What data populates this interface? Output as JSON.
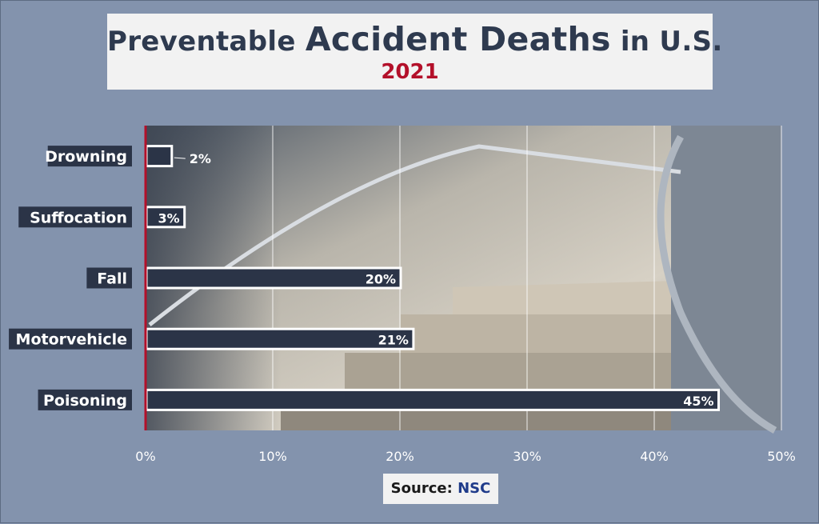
{
  "header": {
    "title_part1": "Preventable",
    "title_part2": "Accident Deaths",
    "title_part3": "in U.S.",
    "subtitle": "2021"
  },
  "source": {
    "label": "Source:",
    "value": "NSC"
  },
  "colors": {
    "background": "#8393ad",
    "bar_fill": "#2b3447",
    "bar_outline": "#ffffff",
    "axis_line": "#b3102a",
    "title_text": "#2e3a4f",
    "subtitle_text": "#b3102a"
  },
  "chart_data": {
    "type": "bar",
    "orientation": "horizontal",
    "categories": [
      "Drowning",
      "Suffocation",
      "Fall",
      "Motorvehicle",
      "Poisoning"
    ],
    "values": [
      2,
      3,
      20,
      21,
      45
    ],
    "value_labels": [
      "2%",
      "3%",
      "20%",
      "21%",
      "45%"
    ],
    "xlim": [
      0,
      50
    ],
    "xticks": [
      0,
      10,
      20,
      30,
      40,
      50
    ],
    "xtick_labels": [
      "0%",
      "10%",
      "20%",
      "30%",
      "40%",
      "50%"
    ],
    "grid": true,
    "title": "Preventable Accident Deaths in U.S.",
    "subtitle": "2021"
  }
}
